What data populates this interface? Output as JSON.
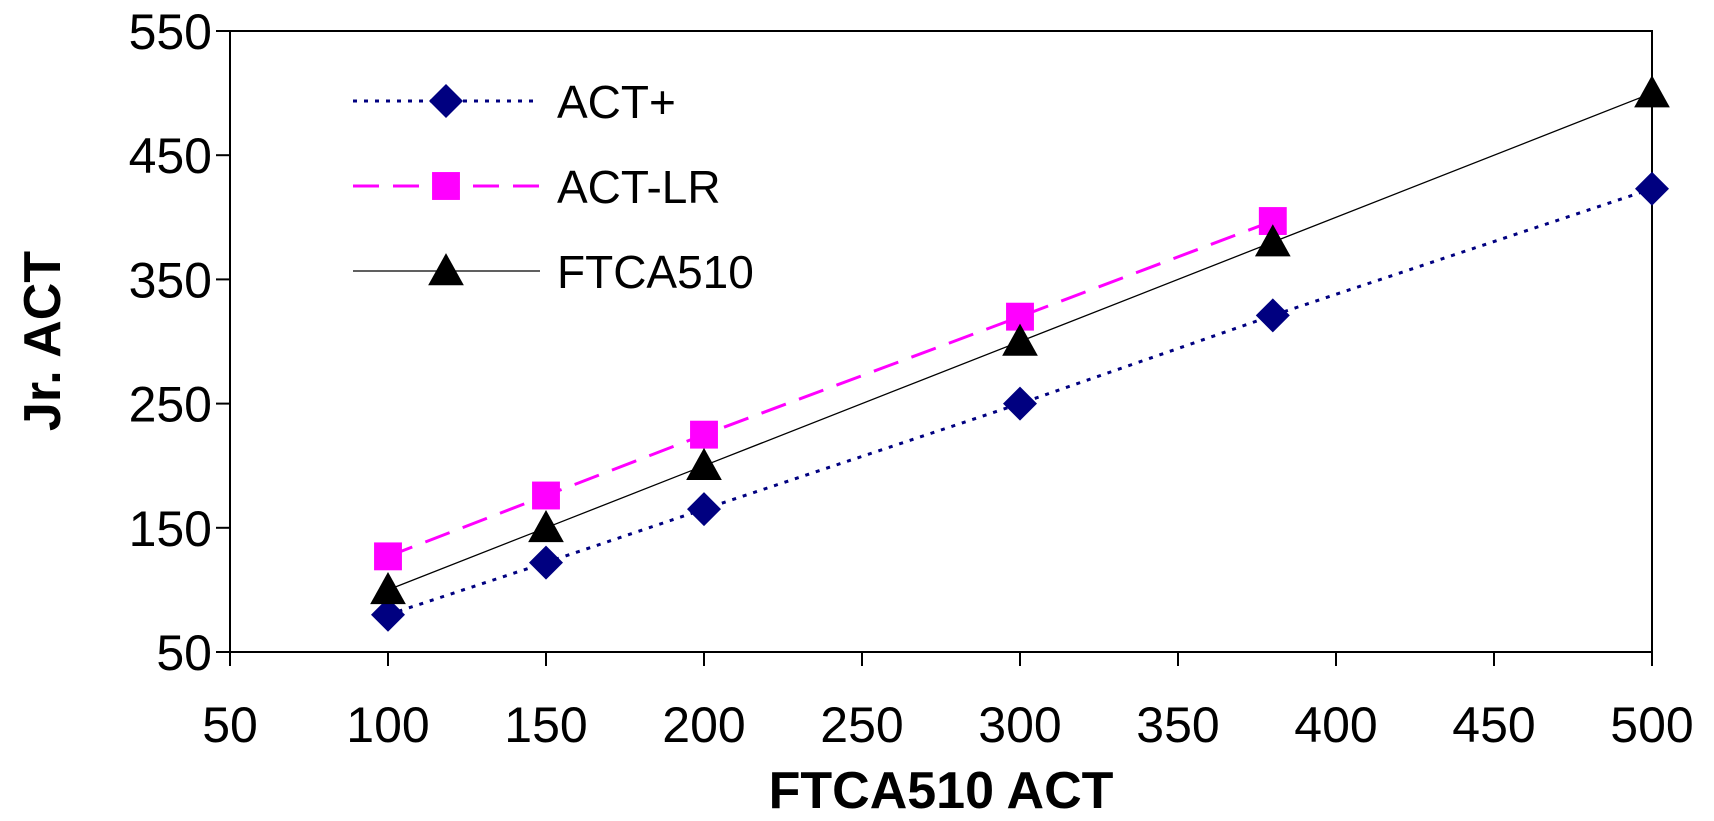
{
  "chart_data": {
    "type": "line",
    "xlabel": "FTCA510 ACT",
    "ylabel": "Jr. ACT",
    "xlim": [
      50,
      500
    ],
    "ylim": [
      50,
      550
    ],
    "x_ticks": [
      50,
      100,
      150,
      200,
      250,
      300,
      350,
      400,
      450,
      500
    ],
    "y_ticks": [
      50,
      150,
      250,
      350,
      450,
      550
    ],
    "grid": false,
    "legend_position": "top-left",
    "series": [
      {
        "name": "ACT+",
        "color": "#000080",
        "line_style": "dotted",
        "marker": "diamond",
        "x": [
          100,
          150,
          200,
          300,
          380,
          500
        ],
        "y": [
          80,
          122,
          165,
          250,
          321,
          423
        ]
      },
      {
        "name": "ACT-LR",
        "color": "#FF00FF",
        "line_style": "dashed",
        "marker": "square",
        "x": [
          100,
          150,
          200,
          300,
          380
        ],
        "y": [
          127,
          176,
          225,
          320,
          397
        ]
      },
      {
        "name": "FTCA510",
        "color": "#000000",
        "line_style": "solid",
        "marker": "triangle",
        "x": [
          100,
          150,
          200,
          300,
          380,
          500
        ],
        "y": [
          100,
          150,
          200,
          300,
          380,
          500
        ]
      }
    ]
  }
}
